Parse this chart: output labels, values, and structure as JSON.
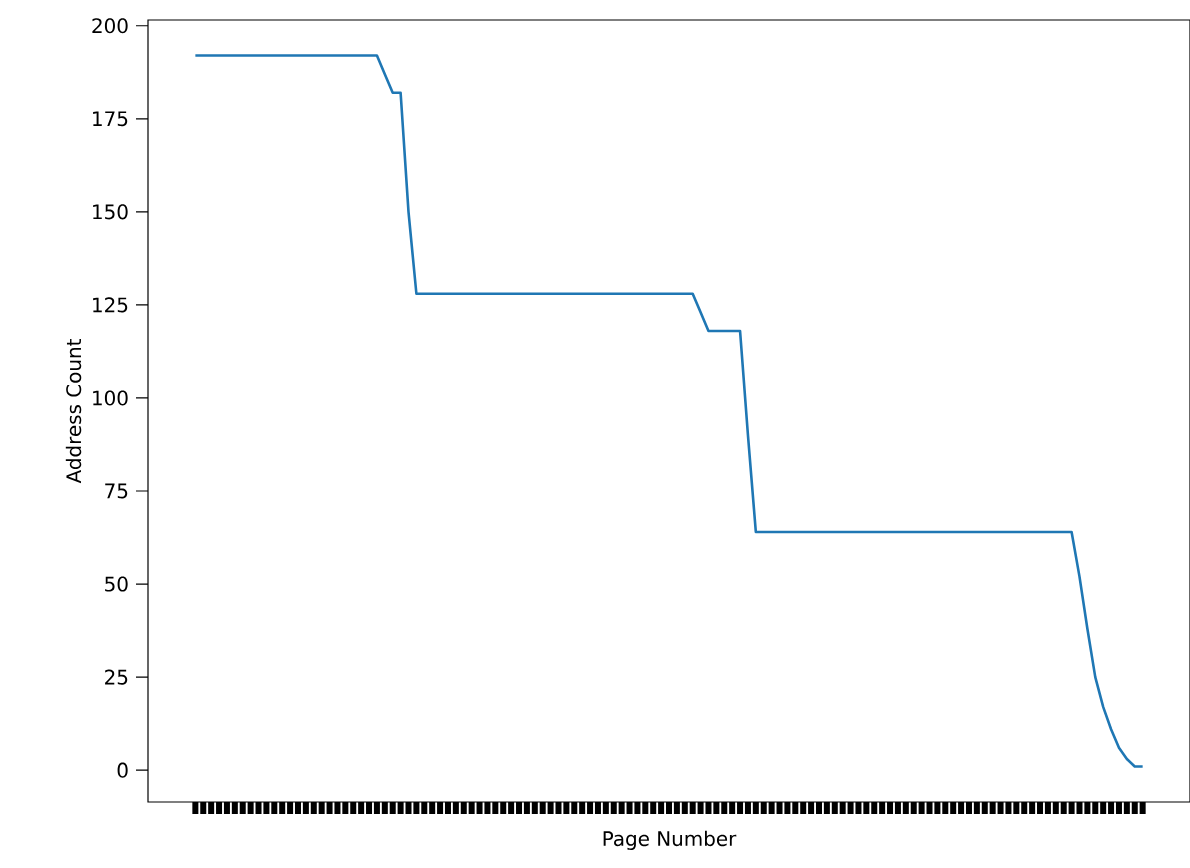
{
  "chart_data": {
    "type": "line",
    "xlabel": "Page Number",
    "ylabel": "Address Count",
    "categories": [
      null,
      null,
      null,
      null,
      null,
      null,
      null,
      null,
      null,
      null,
      null,
      null,
      null,
      null,
      null,
      null,
      null,
      null,
      null,
      null,
      null,
      null,
      null,
      null,
      null,
      null,
      null,
      null,
      null,
      null,
      null,
      null,
      null,
      null,
      null,
      null,
      null,
      null,
      null,
      null,
      null,
      null,
      null,
      null,
      null,
      null,
      null,
      null,
      null,
      null,
      null,
      null,
      null,
      null,
      null,
      null,
      null,
      null,
      null,
      null,
      null,
      null,
      null,
      null,
      null,
      null,
      null,
      null,
      null,
      null,
      null,
      null,
      null,
      null,
      null,
      null,
      null,
      null,
      null,
      null,
      null,
      null,
      null,
      null,
      null,
      null,
      null,
      null,
      null,
      null,
      null,
      null,
      null,
      null,
      null,
      null,
      null,
      null,
      null,
      null,
      null,
      null,
      null,
      null,
      null,
      null,
      null,
      null,
      null,
      null,
      null,
      null,
      null,
      null,
      null,
      null,
      null,
      null,
      null,
      null,
      null
    ],
    "values": [
      192,
      192,
      192,
      192,
      192,
      192,
      192,
      192,
      192,
      192,
      192,
      192,
      192,
      192,
      192,
      192,
      192,
      192,
      192,
      192,
      192,
      192,
      192,
      192,
      187,
      182,
      182,
      150,
      128,
      128,
      128,
      128,
      128,
      128,
      128,
      128,
      128,
      128,
      128,
      128,
      128,
      128,
      128,
      128,
      128,
      128,
      128,
      128,
      128,
      128,
      128,
      128,
      128,
      128,
      128,
      128,
      128,
      128,
      128,
      128,
      128,
      128,
      128,
      128,
      123,
      118,
      118,
      118,
      118,
      118,
      90,
      64,
      64,
      64,
      64,
      64,
      64,
      64,
      64,
      64,
      64,
      64,
      64,
      64,
      64,
      64,
      64,
      64,
      64,
      64,
      64,
      64,
      64,
      64,
      64,
      64,
      64,
      64,
      64,
      64,
      64,
      64,
      64,
      64,
      64,
      64,
      64,
      64,
      64,
      64,
      64,
      64,
      52,
      38,
      25,
      17,
      11,
      6,
      3,
      1,
      1
    ],
    "color": "#1f77b4",
    "ylim": [
      -8.55,
      201.55
    ],
    "yticks": [
      0,
      25,
      50,
      75,
      100,
      125,
      150,
      175,
      200
    ],
    "tick_labels": "y"
  }
}
